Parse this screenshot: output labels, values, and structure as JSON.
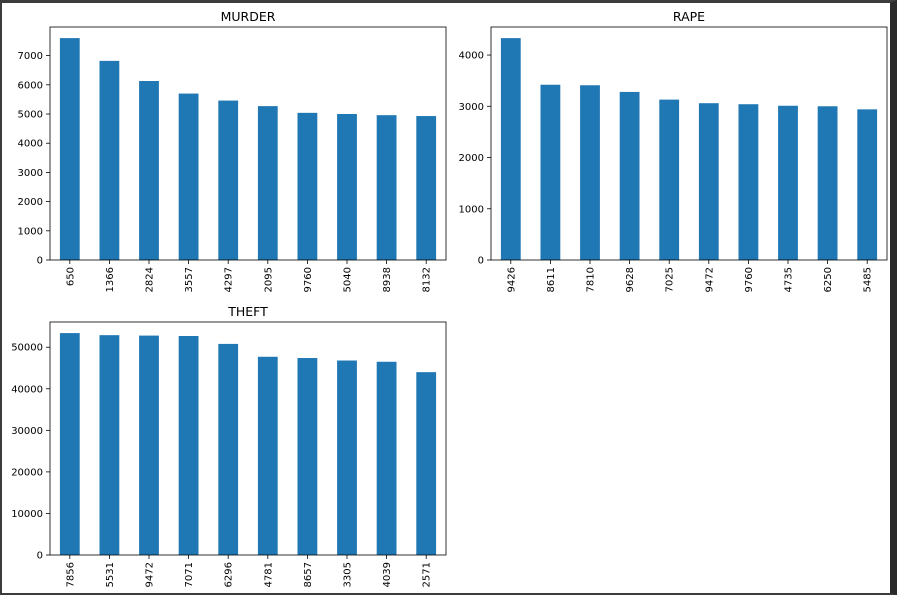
{
  "chart_data": [
    {
      "type": "bar",
      "title": "MURDER",
      "categories": [
        "650",
        "1366",
        "2824",
        "3557",
        "4297",
        "2095",
        "9760",
        "5040",
        "8938",
        "8132"
      ],
      "values": [
        7600,
        6820,
        6130,
        5700,
        5460,
        5270,
        5040,
        5000,
        4960,
        4930
      ],
      "ylim": [
        0,
        7980
      ],
      "yticks": [
        0,
        1000,
        2000,
        3000,
        4000,
        5000,
        6000,
        7000
      ],
      "color": "#1f77b4",
      "grid": false
    },
    {
      "type": "bar",
      "title": "RAPE",
      "categories": [
        "9426",
        "8611",
        "7810",
        "9628",
        "7025",
        "9472",
        "9760",
        "4735",
        "6250",
        "5485"
      ],
      "values": [
        4330,
        3420,
        3410,
        3280,
        3130,
        3060,
        3040,
        3010,
        3000,
        2940
      ],
      "ylim": [
        0,
        4547
      ],
      "yticks": [
        0,
        1000,
        2000,
        3000,
        4000
      ],
      "color": "#1f77b4",
      "grid": false
    },
    {
      "type": "bar",
      "title": "THEFT",
      "categories": [
        "7856",
        "5531",
        "9472",
        "7071",
        "6296",
        "4781",
        "8657",
        "3305",
        "4039",
        "2571"
      ],
      "values": [
        53400,
        52900,
        52800,
        52700,
        50800,
        47700,
        47400,
        46800,
        46500,
        44000
      ],
      "ylim": [
        0,
        56070
      ],
      "yticks": [
        0,
        10000,
        20000,
        30000,
        40000,
        50000
      ],
      "color": "#1f77b4",
      "grid": false
    }
  ]
}
